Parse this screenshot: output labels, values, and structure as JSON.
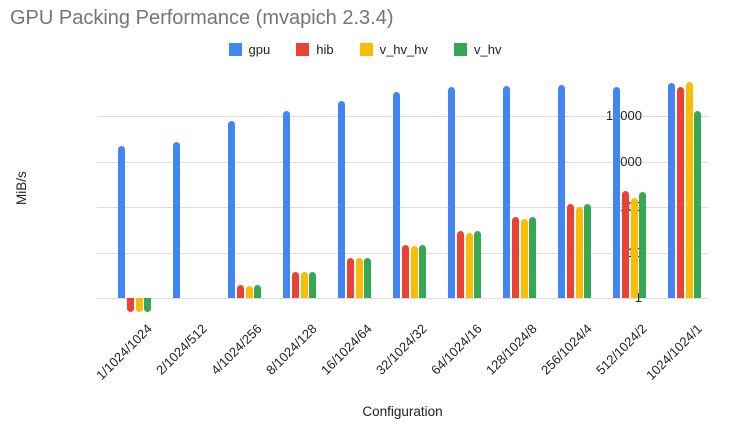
{
  "chart_data": {
    "type": "bar",
    "title": "GPU Packing Performance (mvapich 2.3.4)",
    "xlabel": "Configuration",
    "ylabel": "MiB/s",
    "y_scale": "log",
    "baseline": 1,
    "yticks": [
      1,
      10,
      100,
      1000,
      10000
    ],
    "ylim": [
      0.4,
      80000
    ],
    "grid": true,
    "legend_position": "top",
    "categories": [
      "1/1024/1024",
      "2/1024/512",
      "4/1024/256",
      "8/1024/128",
      "16/1024/64",
      "32/1024/32",
      "64/1024/16",
      "128/1024/8",
      "256/1024/4",
      "512/1024/2",
      "1024/1024/1"
    ],
    "series": [
      {
        "name": "gpu",
        "color": "#4285F4",
        "values": [
          2200,
          2750,
          8000,
          13000,
          22000,
          35000,
          44000,
          47000,
          49000,
          45000,
          55000
        ]
      },
      {
        "name": "hib",
        "color": "#EA4335",
        "values": [
          0.5,
          1,
          1.9,
          3.8,
          7.8,
          15,
          30,
          60,
          115,
          230,
          45000
        ]
      },
      {
        "name": "v_hv_hv",
        "color": "#FBBC04",
        "values": [
          0.5,
          1,
          1.8,
          3.7,
          7.5,
          14,
          27,
          55,
          100,
          160,
          58000
        ]
      },
      {
        "name": "v_hv",
        "color": "#34A853",
        "values": [
          0.5,
          1,
          1.9,
          3.8,
          7.8,
          15,
          30,
          62,
          118,
          220,
          13500
        ]
      }
    ]
  },
  "colors": {
    "title_text": "#757575",
    "axis_text": "#222222",
    "gridline": "#dddddd",
    "background": "#ffffff"
  }
}
